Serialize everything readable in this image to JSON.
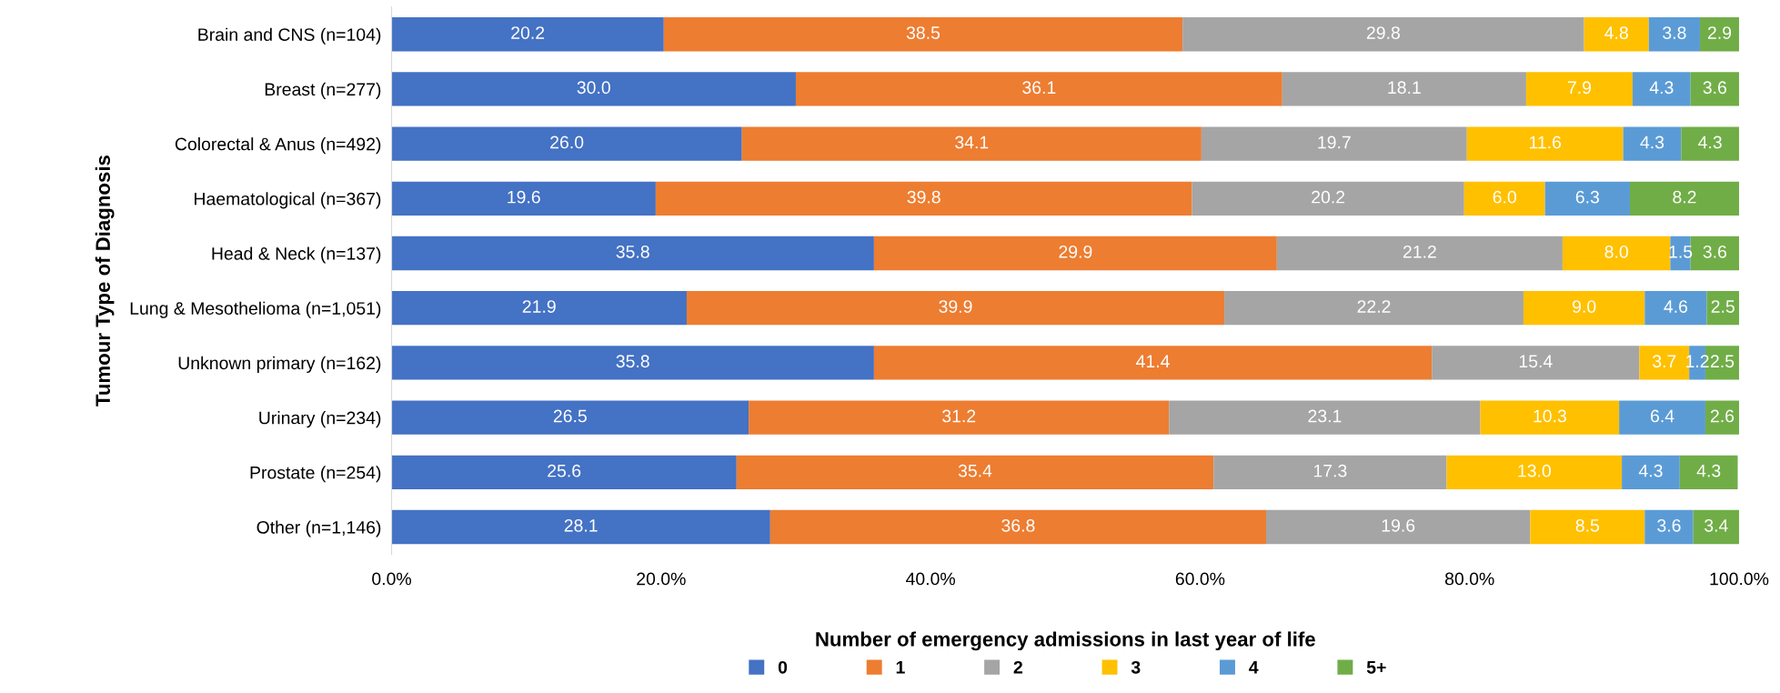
{
  "chart_data": {
    "type": "bar",
    "orientation": "horizontal",
    "stacked": true,
    "xlabel": "Number of emergency admissions in last year of life",
    "ylabel": "Tumour Type of Diagnosis",
    "categories": [
      "Brain and CNS (n=104)",
      "Breast (n=277)",
      "Colorectal & Anus (n=492)",
      "Haematological (n=367)",
      "Head & Neck (n=137)",
      "Lung & Mesothelioma (n=1,051)",
      "Unknown primary (n=162)",
      "Urinary (n=234)",
      "Prostate (n=254)",
      "Other (n=1,146)"
    ],
    "series": [
      {
        "name": "0",
        "color": "#4472c4",
        "values": [
          20.2,
          30.0,
          26.0,
          19.6,
          35.8,
          21.9,
          35.8,
          26.5,
          25.6,
          28.1
        ],
        "value_labels": [
          "20.2",
          "30.0",
          "26.0",
          "19.6",
          "35.8",
          "21.9",
          "35.8",
          "26.5",
          "25.6",
          "28.1"
        ]
      },
      {
        "name": "1",
        "color": "#ed7d31",
        "values": [
          38.5,
          36.1,
          34.1,
          39.8,
          29.9,
          39.9,
          41.4,
          31.2,
          35.4,
          36.8
        ],
        "value_labels": [
          "38.5",
          "36.1",
          "34.1",
          "39.8",
          "29.9",
          "39.9",
          "41.4",
          "31.2",
          "35.4",
          "36.8"
        ]
      },
      {
        "name": "2",
        "color": "#a5a5a5",
        "values": [
          29.8,
          18.1,
          19.7,
          20.2,
          21.2,
          22.2,
          15.4,
          23.1,
          17.3,
          19.6
        ],
        "value_labels": [
          "29.8",
          "18.1",
          "19.7",
          "20.2",
          "21.2",
          "22.2",
          "15.4",
          "23.1",
          "17.3",
          "19.6"
        ]
      },
      {
        "name": "3",
        "color": "#ffc000",
        "values": [
          4.8,
          7.9,
          11.6,
          6.0,
          8.0,
          9.0,
          3.7,
          10.3,
          13.0,
          8.5
        ],
        "value_labels": [
          "4.8",
          "7.9",
          "11.6",
          "6.0",
          "8.0",
          "9.0",
          "3.7",
          "10.3",
          "13.0",
          "8.5"
        ]
      },
      {
        "name": "4",
        "color": "#5b9bd5",
        "values": [
          3.8,
          4.3,
          4.3,
          6.3,
          1.5,
          4.6,
          1.2,
          6.4,
          4.3,
          3.6
        ],
        "value_labels": [
          "3.8",
          "4.3",
          "4.3",
          "6.3",
          "1.5",
          "4.6",
          "1.2",
          "6.4",
          "4.3",
          "3.6"
        ]
      },
      {
        "name": "5+",
        "color": "#70ad47",
        "values": [
          2.9,
          3.6,
          4.3,
          8.2,
          3.6,
          2.5,
          2.5,
          2.6,
          4.3,
          3.4
        ],
        "value_labels": [
          "2.9",
          "3.6",
          "4.3",
          "8.2",
          "3.6",
          "2.5",
          "2.5",
          "2.6",
          "4.3",
          "3.4"
        ]
      }
    ],
    "xlim": [
      0,
      100
    ],
    "xticks": [
      {
        "value": 0,
        "label": "0.0%"
      },
      {
        "value": 20,
        "label": "20.0%"
      },
      {
        "value": 40,
        "label": "40.0%"
      },
      {
        "value": 60,
        "label": "60.0%"
      },
      {
        "value": 80,
        "label": "80.0%"
      },
      {
        "value": 100,
        "label": "100.0%"
      }
    ],
    "legend": "bottom"
  }
}
